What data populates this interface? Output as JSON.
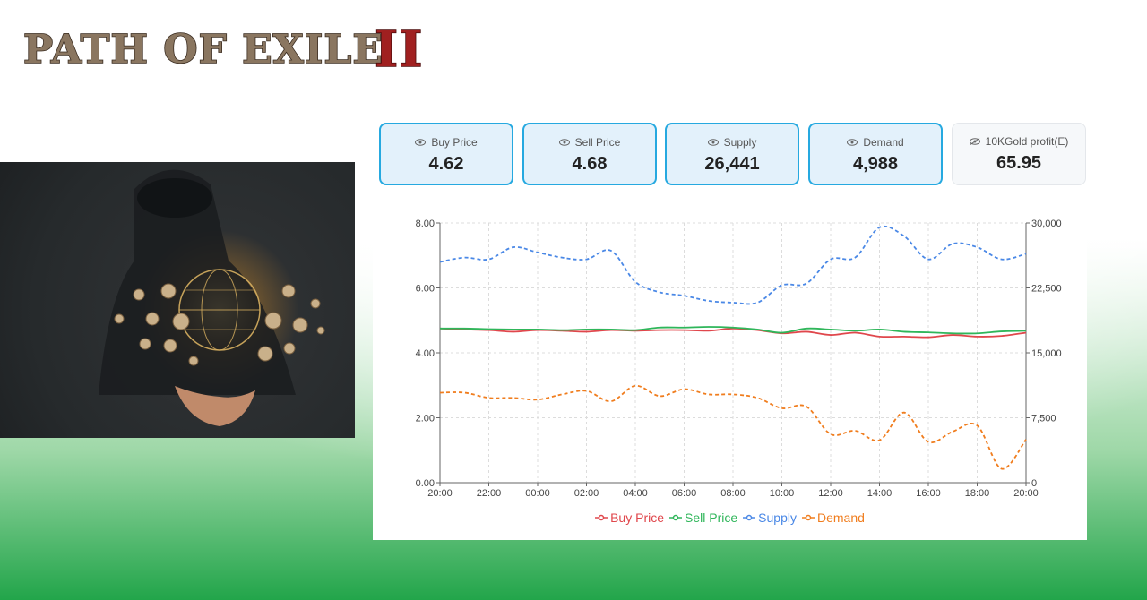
{
  "logo": {
    "text": "PATH OF EXILE",
    "roman": "II"
  },
  "colors": {
    "buy": "#e0474c",
    "sell": "#2fb65a",
    "supply": "#4a88e6",
    "demand": "#f07d1e",
    "card_border": "#26a9e0",
    "card_bg": "#e3f1fb"
  },
  "stats": [
    {
      "label": "Buy Price",
      "value": "4.62",
      "icon": "eye-icon"
    },
    {
      "label": "Sell Price",
      "value": "4.68",
      "icon": "eye-icon"
    },
    {
      "label": "Supply",
      "value": "26,441",
      "icon": "eye-icon"
    },
    {
      "label": "Demand",
      "value": "4,988",
      "icon": "eye-icon"
    },
    {
      "label": "10KGold profit(E)",
      "value": "65.95",
      "icon": "eye-off-icon"
    }
  ],
  "chart_data": {
    "type": "line",
    "x": [
      "20:00",
      "21:00",
      "22:00",
      "23:00",
      "00:00",
      "01:00",
      "02:00",
      "03:00",
      "04:00",
      "05:00",
      "06:00",
      "07:00",
      "08:00",
      "09:00",
      "10:00",
      "11:00",
      "12:00",
      "13:00",
      "14:00",
      "15:00",
      "16:00",
      "17:00",
      "18:00",
      "19:00",
      "20:00"
    ],
    "x_ticks": [
      "20:00",
      "22:00",
      "00:00",
      "02:00",
      "04:00",
      "06:00",
      "08:00",
      "10:00",
      "12:00",
      "14:00",
      "16:00",
      "18:00",
      "20:00"
    ],
    "y_left": {
      "ylim": [
        0,
        8
      ],
      "ticks": [
        "0.00",
        "2.00",
        "4.00",
        "6.00",
        "8.00"
      ]
    },
    "y_right": {
      "ylim": [
        0,
        30000
      ],
      "ticks": [
        "0",
        "7,500",
        "15,000",
        "22,500",
        "30,000"
      ]
    },
    "grid": true,
    "legend_position": "bottom",
    "series": [
      {
        "name": "Buy Price",
        "axis": "left",
        "style": "solid",
        "color": "#e0474c",
        "values": [
          4.75,
          4.72,
          4.7,
          4.65,
          4.7,
          4.68,
          4.65,
          4.7,
          4.68,
          4.7,
          4.7,
          4.68,
          4.75,
          4.7,
          4.6,
          4.65,
          4.55,
          4.62,
          4.5,
          4.5,
          4.48,
          4.55,
          4.5,
          4.52,
          4.62
        ]
      },
      {
        "name": "Sell Price",
        "axis": "left",
        "style": "solid",
        "color": "#2fb65a",
        "values": [
          4.75,
          4.75,
          4.73,
          4.72,
          4.72,
          4.7,
          4.72,
          4.72,
          4.7,
          4.78,
          4.78,
          4.8,
          4.78,
          4.72,
          4.62,
          4.75,
          4.72,
          4.68,
          4.72,
          4.65,
          4.63,
          4.6,
          4.6,
          4.66,
          4.68
        ]
      },
      {
        "name": "Supply",
        "axis": "right",
        "style": "dashed",
        "color": "#4a88e6",
        "values": [
          25500,
          26000,
          25800,
          27200,
          26600,
          26000,
          25800,
          26800,
          23200,
          22000,
          21600,
          21000,
          20800,
          20800,
          22800,
          23000,
          25800,
          26000,
          29500,
          28500,
          25800,
          27600,
          27200,
          25800,
          26441
        ]
      },
      {
        "name": "Demand",
        "axis": "right",
        "style": "dashed",
        "color": "#f07d1e",
        "values": [
          10400,
          10400,
          9800,
          9800,
          9600,
          10200,
          10600,
          9400,
          11200,
          10000,
          10800,
          10200,
          10200,
          9800,
          8600,
          8800,
          5600,
          6000,
          4900,
          8100,
          4700,
          5900,
          6600,
          1600,
          4988
        ]
      }
    ]
  }
}
